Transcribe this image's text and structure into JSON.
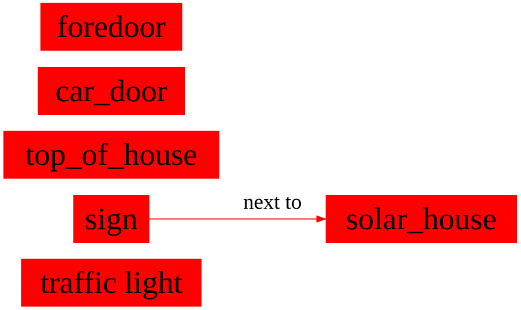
{
  "nodes": {
    "foredoor": "foredoor",
    "car_door": "car_door",
    "top_of_house": "top_of_house",
    "sign": "sign",
    "traffic_light": "traffic light",
    "solar_house": "solar_house"
  },
  "edges": [
    {
      "from": "sign",
      "to": "solar_house",
      "label": "next to"
    }
  ],
  "colors": {
    "node_fill": "#ff0000",
    "edge": "#ff0000",
    "text": "#000000"
  }
}
